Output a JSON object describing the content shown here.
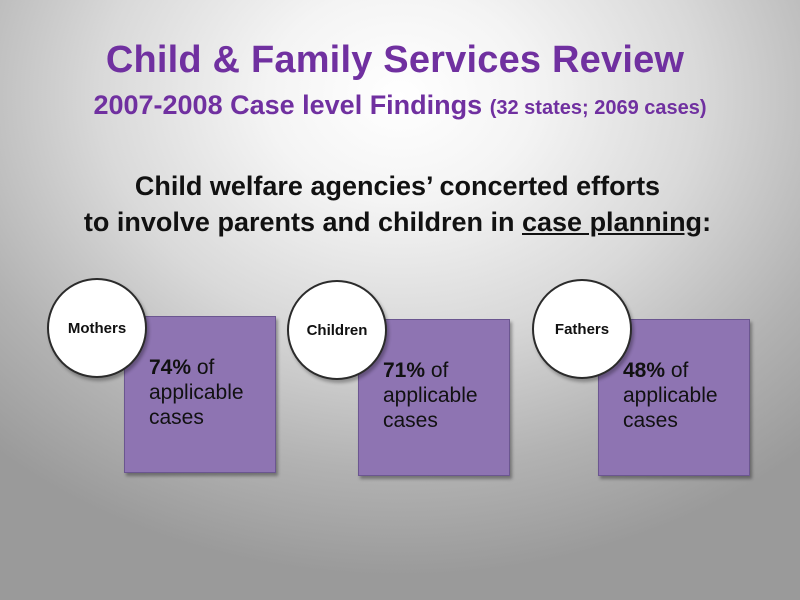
{
  "slide": {
    "title": "Child & Family Services Review",
    "subtitle_main": "2007-2008 Case level Findings",
    "subtitle_note": "(32 states; 2069 cases)",
    "headline_line1": "Child welfare agencies’ concerted efforts",
    "headline_line2_prefix": "to involve parents and children in ",
    "headline_line2_underlined": "case planning",
    "headline_line2_suffix": ":"
  },
  "findings": [
    {
      "group": "Mothers",
      "percent": "74%",
      "text_1": " of",
      "text_2": "applicable",
      "text_3": "cases"
    },
    {
      "group": "Children",
      "percent": "71%",
      "text_1": " of",
      "text_2": "applicable",
      "text_3": "cases"
    },
    {
      "group": "Fathers",
      "percent": "48%",
      "text_1": " of",
      "text_2": "applicable",
      "text_3": "cases"
    }
  ],
  "colors": {
    "title": "#7030a0",
    "card_fill": "#8e74b2",
    "circle_fill": "#ffffff"
  }
}
